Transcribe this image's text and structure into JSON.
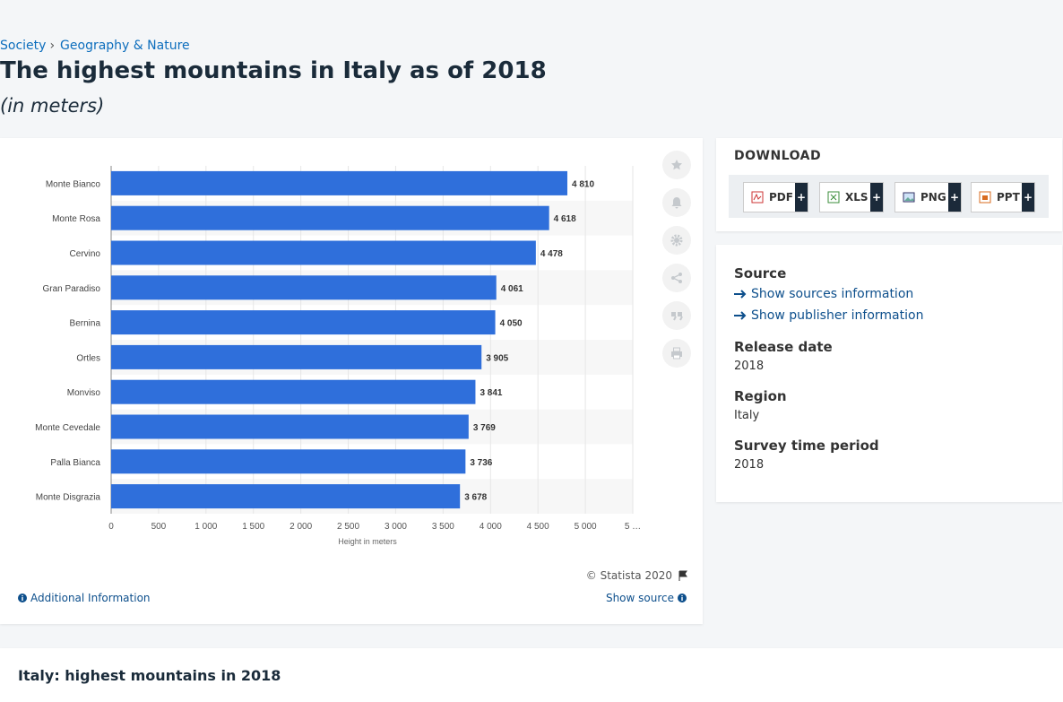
{
  "breadcrumb": [
    "Society",
    "Geography & Nature"
  ],
  "title": "The highest mountains in Italy as of 2018",
  "subtitle": "(in meters)",
  "chart_data": {
    "type": "bar",
    "orientation": "horizontal",
    "categories": [
      "Monte Bianco",
      "Monte Rosa",
      "Cervino",
      "Gran Paradiso",
      "Bernina",
      "Ortles",
      "Monviso",
      "Monte Cevedale",
      "Palla Bianca",
      "Monte Disgrazia"
    ],
    "values": [
      4810,
      4618,
      4478,
      4061,
      4050,
      3905,
      3841,
      3769,
      3736,
      3678
    ],
    "value_labels": [
      "4 810",
      "4 618",
      "4 478",
      "4 061",
      "4 050",
      "3 905",
      "3 841",
      "3 769",
      "3 736",
      "3 678"
    ],
    "color": "#2f6fdb",
    "xlabel": "Height in meters",
    "xlim": [
      0,
      5500
    ],
    "xticks": [
      0,
      500,
      {
        "value": 1000,
        "label": "1 000"
      },
      {
        "value": 1500,
        "label": "1 500"
      },
      {
        "value": 2000,
        "label": "2 000"
      },
      {
        "value": 2500,
        "label": "2 500"
      },
      {
        "value": 3000,
        "label": "3 000"
      },
      {
        "value": 3500,
        "label": "3 500"
      },
      {
        "value": 4000,
        "label": "4 000"
      },
      {
        "value": 4500,
        "label": "4 500"
      },
      {
        "value": 5000,
        "label": "5 000"
      },
      {
        "value": 5500,
        "label": "5 …"
      }
    ],
    "grid": true
  },
  "copyright": "© Statista 2020",
  "additional_info": "Additional Information",
  "show_source": "Show source",
  "download": {
    "title": "DOWNLOAD",
    "formats": [
      "PDF",
      "XLS",
      "PNG",
      "PPT"
    ],
    "badge": "+"
  },
  "details": {
    "source_heading": "Source",
    "links": [
      "Show sources information",
      "Show publisher information"
    ],
    "items": [
      {
        "label": "Release date",
        "value": "2018"
      },
      {
        "label": "Region",
        "value": "Italy"
      },
      {
        "label": "Survey time period",
        "value": "2018"
      }
    ]
  },
  "footer_heading": "Italy: highest mountains in 2018"
}
